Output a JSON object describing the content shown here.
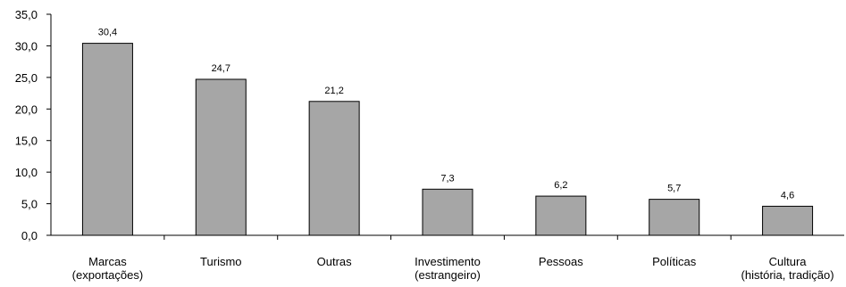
{
  "chart_data": {
    "type": "bar",
    "categories": [
      [
        "Marcas",
        "(exportações)"
      ],
      [
        "Turismo"
      ],
      [
        "Outras"
      ],
      [
        "Investimento",
        "(estrangeiro)"
      ],
      [
        "Pessoas"
      ],
      [
        "Políticas"
      ],
      [
        "Cultura",
        "(história, tradição)"
      ]
    ],
    "values": [
      30.4,
      24.7,
      21.2,
      7.3,
      6.2,
      5.7,
      4.6
    ],
    "value_labels": [
      "30,4",
      "24,7",
      "21,2",
      "7,3",
      "6,2",
      "5,7",
      "4,6"
    ],
    "yticks": [
      {
        "value": 0,
        "label": "0,0"
      },
      {
        "value": 5,
        "label": "5,0"
      },
      {
        "value": 10,
        "label": "10,0"
      },
      {
        "value": 15,
        "label": "15,0"
      },
      {
        "value": 20,
        "label": "20,0"
      },
      {
        "value": 25,
        "label": "25,0"
      },
      {
        "value": 30,
        "label": "30,0"
      },
      {
        "value": 35,
        "label": "35,0"
      }
    ],
    "ylim": [
      0,
      35
    ],
    "grid": false,
    "title": "",
    "xlabel": "",
    "ylabel": "",
    "colors": {
      "bar_fill": "#a6a6a6",
      "bar_stroke": "#000000",
      "axis": "#000000"
    }
  }
}
